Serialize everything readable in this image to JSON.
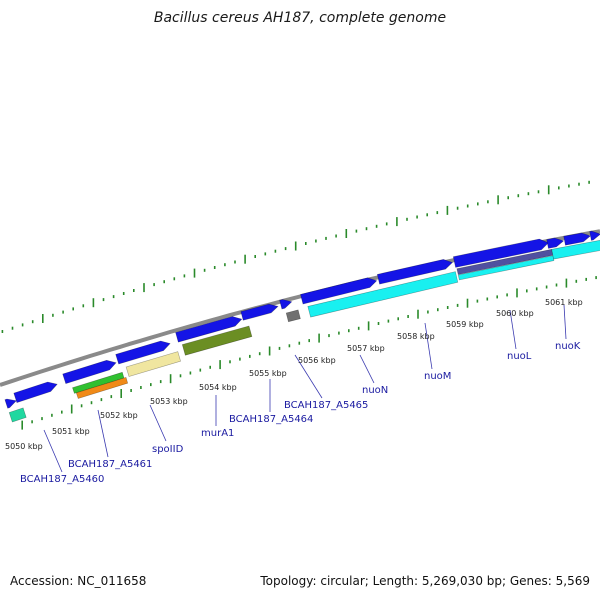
{
  "title": "Bacillus cereus AH187, complete genome",
  "footer": {
    "accession": "Accession: NC_011658",
    "summary": "Topology: circular; Length: 5,269,030 bp; Genes: 5,569"
  },
  "colors": {
    "backbone": "#8a8a8a",
    "gene_blue": "#1414e6",
    "gene_cyan": "#19f0f0",
    "gene_teal": "#20d8a0",
    "gene_green": "#30c030",
    "gene_orange": "#f08a18",
    "gene_khaki": "#f0e6a0",
    "gene_olive": "#6b8e23",
    "gene_gray": "#707070",
    "gene_purple": "#5050a0",
    "tick_green": "#2a8a2a",
    "label_blue": "#1a1aa0",
    "leader": "#3a3ab0"
  },
  "kbp_labels": [
    "5050 kbp",
    "5051 kbp",
    "5052 kbp",
    "5053 kbp",
    "5054 kbp",
    "5055 kbp",
    "5056 kbp",
    "5057 kbp",
    "5058 kbp",
    "5059 kbp",
    "5060 kbp",
    "5061 kbp"
  ],
  "gene_labels": [
    "BCAH187_A5460",
    "BCAH187_A5461",
    "spoIID",
    "murA1",
    "BCAH187_A5464",
    "BCAH187_A5465",
    "nuoN",
    "nuoM",
    "nuoL",
    "nuoK"
  ]
}
